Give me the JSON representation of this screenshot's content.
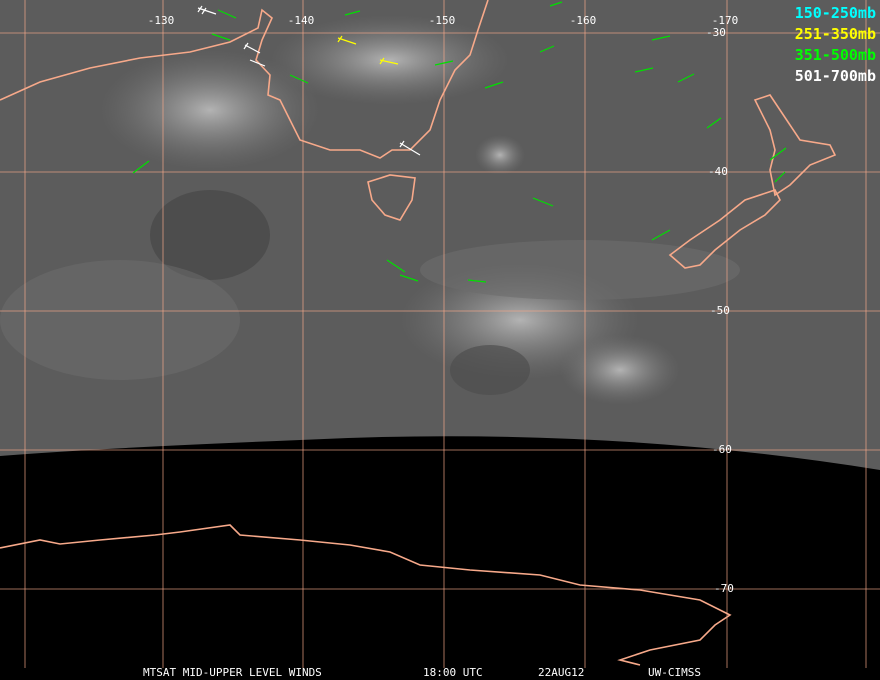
{
  "map": {
    "lon_labels": [
      "-130",
      "-140",
      "-150",
      "-160",
      "-170"
    ],
    "lat_labels": [
      "-30",
      "-40",
      "-50",
      "-60",
      "-70"
    ]
  },
  "legend": [
    "150-250mb",
    "251-350mb",
    "351-500mb",
    "501-700mb"
  ],
  "footer": [
    "MTSAT MID-UPPER LEVEL WINDS",
    "18:00 UTC",
    "22AUG12",
    "UW-CIMSS"
  ]
}
